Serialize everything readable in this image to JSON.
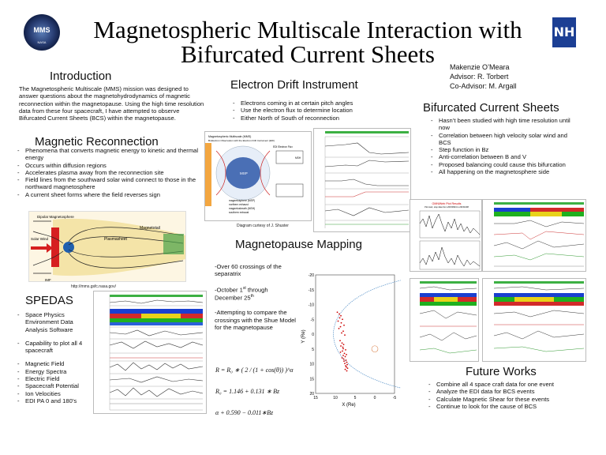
{
  "header": {
    "title_line1": "Magnetospheric Multiscale Interaction with",
    "title_line2": "Bifurcated Current Sheets",
    "author": "Makenzie O’Meara",
    "advisor": "Advisor: R. Torbert",
    "coadvisor": "Co-Advisor: M. Argall",
    "left_logo_text": "MMS",
    "left_logo_subtext": "NASA",
    "right_logo_text": "NH"
  },
  "introduction": {
    "heading": "Introduction",
    "text": "The Magnetospheric Multiscale (MMS) mission was designed to answer questions about the magnetohydrodynamics of magnetic reconnection within the magnetopause. Using the high time resolution data from these four spacecraft, I have attempted to observe Bifurcated Current Sheets (BCS) within the magnetopause."
  },
  "magnetic_reconnection": {
    "heading": "Magnetic Reconnection",
    "items": [
      "Phenomena that converts magnetic energy to kinetic and thermal energy",
      "Occurs within diffusion regions",
      "Accelerates plasma away from the reconnection site",
      "Field lines from the southward solar wind connect to those in the northward magnetosphere",
      "A current sheet forms where the field reverses sign"
    ],
    "figure_labels": {
      "dipolar": "Dipolar Magnetosphere",
      "solar_wind": "Solar Wind",
      "plasmasheet": "Plasmasheet",
      "magnetotail": "Magnetotail",
      "imf": "IMF"
    },
    "caption": "http://mms.gsfc.nasa.gov/"
  },
  "spedas": {
    "heading": "SPEDAS",
    "items": [
      "Space Physics Environment Data Analysis Software",
      "Capability to plot all 4 spacecraft",
      "Magnetic Field",
      "Energy Spectra",
      "Electric Field",
      "Spacecraft Potential",
      "Ion Velocities",
      "EDI PA 0 and 180’s"
    ]
  },
  "edi": {
    "heading": "Electron Drift Instrument",
    "items": [
      "Electrons coming in at certain pitch angles",
      "Use the electron flux to determine location",
      "Either North of South of reconnection"
    ],
    "figure_title": "Magnetospheric Multiscale (MMS)",
    "figure_subtitle": "Bi-Electron Observation with the Electron Drift Instrument (EDI)",
    "figure_caption": "Diagram curtesy of J. Shuster",
    "msp": "MSP",
    "msh": "MSH",
    "edi_flux": "EDI Electron Flux",
    "legend": [
      "magnetosphere (MSP)",
      "northern exhaust",
      "magnetosheath (MSH)",
      "southern exhaust"
    ]
  },
  "magnetopause_mapping": {
    "heading": "Magnetopause Mapping",
    "para1": "-Over 60 crossings of the separatrix",
    "para2_pre": "-October 1",
    "para2_sup1": "st",
    "para2_mid": " through December 25",
    "para2_sup2": "th",
    "para3": "-Attempting to compare the crossings with the Shue Model for the magnetopause",
    "eq1": "R = R₀ ∗ ( 2 / (1 + cos(θ)) )^α",
    "eq2": "R₀ = 1.146 + 0.131 ∗ Bz",
    "eq3": "α + 0.590 − 0.011∗Bz"
  },
  "chart_data": {
    "type": "scatter",
    "xlabel": "X (Re)",
    "ylabel": "Y (Re)",
    "xlim": [
      15,
      -5
    ],
    "ylim": [
      20,
      -20
    ],
    "xticks": [
      "15",
      "10",
      "5",
      "0",
      "-5"
    ],
    "yticks": [
      "-20",
      "-15",
      "-10",
      "-5",
      "0",
      "5",
      "10",
      "15",
      "20"
    ],
    "series": [
      {
        "x": [
          9.5,
          9.0,
          8.6,
          8.9,
          8.2,
          9.3,
          8.5,
          7.8,
          8.7,
          9.1,
          8.0,
          8.4,
          7.6,
          8.8,
          8.3,
          7.9,
          8.6,
          8.1,
          8.0,
          7.4,
          8.2,
          8.7,
          7.7,
          7.2,
          8.0,
          7.5,
          8.3,
          7.9,
          7.3,
          7.8,
          7.1,
          7.6,
          7.0,
          7.4,
          7.2,
          6.9,
          7.5,
          7.1
        ],
        "y": [
          -7.4,
          -6.8,
          -6.2,
          -5.5,
          -5.0,
          -4.4,
          -3.8,
          -3.0,
          -2.5,
          -1.9,
          -1.0,
          -0.4,
          0.3,
          2.2,
          3.0,
          3.5,
          4.0,
          4.4,
          4.9,
          5.3,
          5.7,
          6.1,
          6.5,
          6.9,
          7.2,
          7.6,
          8.0,
          8.4,
          8.8,
          9.1,
          9.5,
          9.9,
          10.3,
          10.7,
          11.1,
          11.5,
          11.9,
          12.4
        ]
      }
    ],
    "circle": {
      "x": 0.0,
      "y": 5.0
    }
  },
  "bcs": {
    "heading": "Bifurcated Current Sheets",
    "items": [
      "Hasn’t been studied with high time resolution until now",
      "Correlation between high velocity solar wind and BCS",
      "Step function in Bz",
      "Anti-correlation between B and V",
      "Proposed balancing could cause this bifurcation",
      "All happening on the magnetosphere side"
    ],
    "omni_title": "OMNIWeb Plot Results",
    "omni_sub": "Plot start, stop data from 20150904 to 20151008"
  },
  "future_works": {
    "heading": "Future Works",
    "items": [
      "Combine all 4 space craft data for one event",
      "Analyze the EDI data for BCS events",
      "Calculate Magnetic Shear for these events",
      "Continue to look for the cause of BCS"
    ]
  },
  "colors": {
    "accent_blue": "#1c3f94",
    "scatter_red": "#cc0000",
    "shue_curve": "#3a7fbf"
  }
}
